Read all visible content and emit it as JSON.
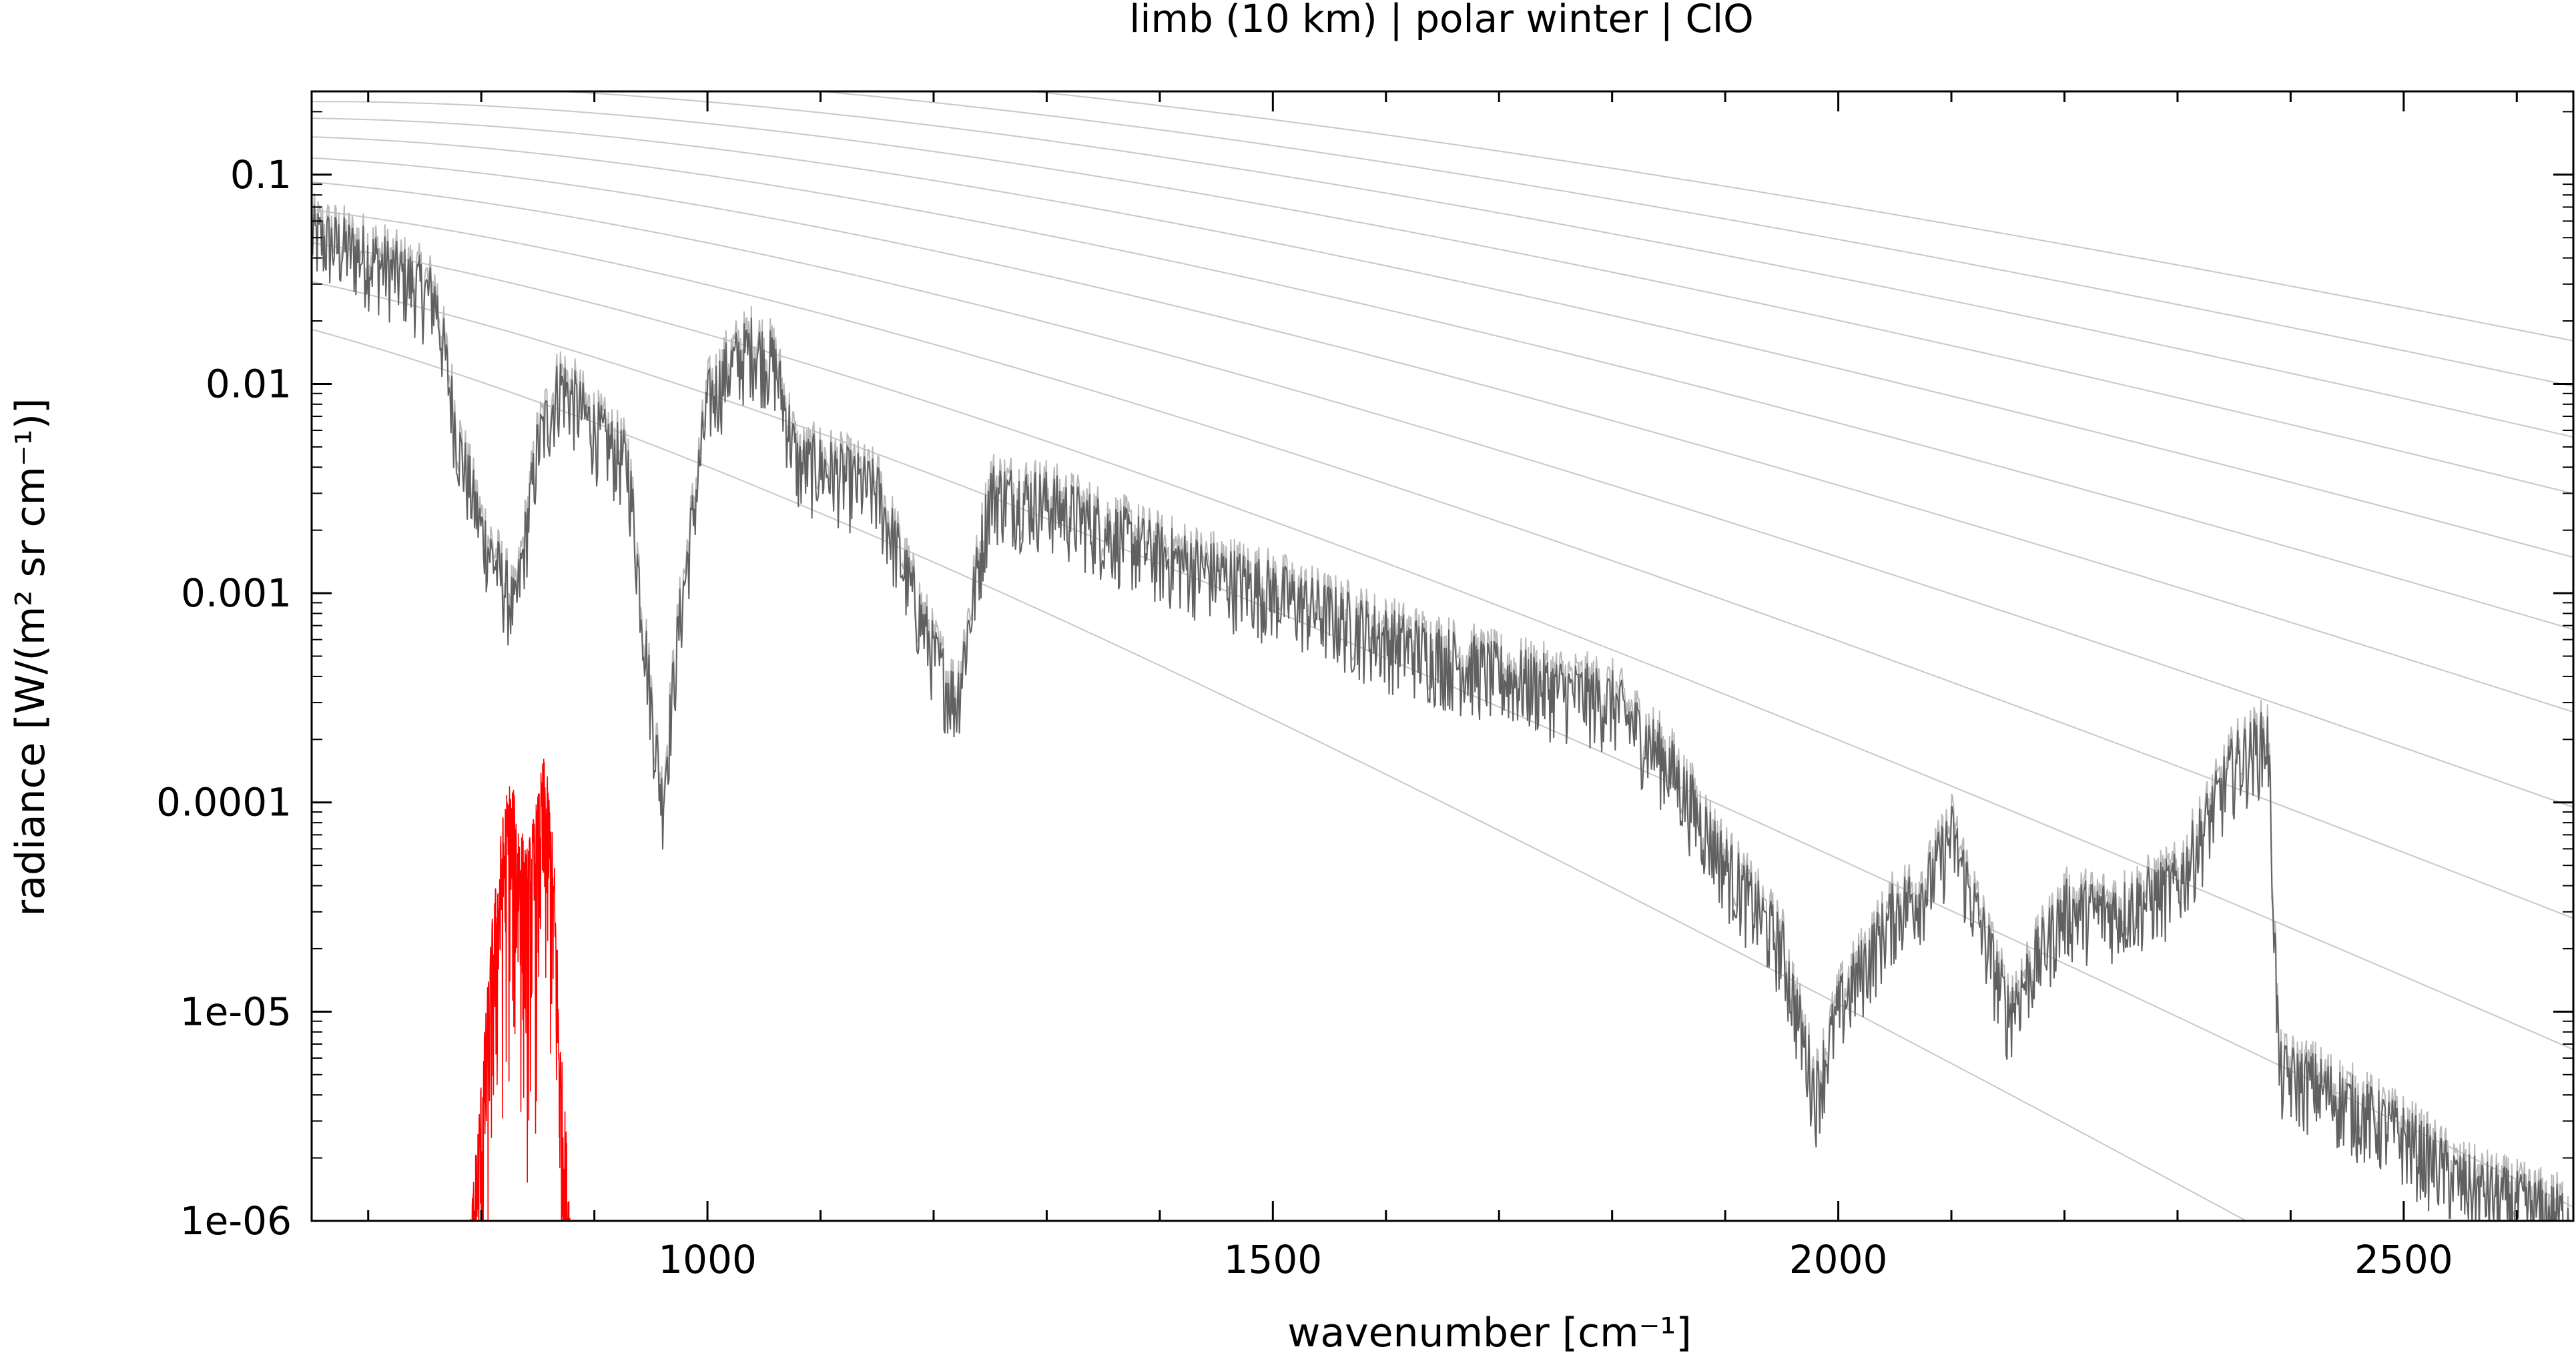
{
  "chart_data": {
    "type": "line",
    "title": "limb (10 km) | polar winter | ClO",
    "xlabel": "wavenumber [cm⁻¹]",
    "ylabel": "radiance [W/(m² sr cm⁻¹)]",
    "xlim": [
      650,
      2650
    ],
    "ylim": [
      1e-06,
      0.25
    ],
    "y_scale": "log",
    "x_ticks": [
      1000,
      1500,
      2000,
      2500
    ],
    "x_tick_labels": [
      "1000",
      "1500",
      "2000",
      "2500"
    ],
    "y_ticks": [
      1e-06,
      1e-05,
      0.0001,
      0.001,
      0.01,
      0.1
    ],
    "y_tick_labels": [
      "1e-06",
      "1e-05",
      "0.0001",
      "0.001",
      "0.01",
      "0.1"
    ],
    "grid": false,
    "legend": "none",
    "reference_curves": {
      "description": "Planck radiance curves",
      "temperatures_K": [
        180,
        200,
        220,
        240,
        260,
        280,
        300,
        320,
        340,
        360,
        380,
        400
      ],
      "color": "#c8c8c8"
    },
    "series": [
      {
        "role": "total spectrum",
        "color": "#606060",
        "x": [
          650,
          700,
          740,
          760,
          780,
          800,
          830,
          850,
          870,
          900,
          930,
          950,
          960,
          975,
          1000,
          1020,
          1040,
          1060,
          1080,
          1100,
          1150,
          1200,
          1220,
          1250,
          1300,
          1350,
          1400,
          1500,
          1600,
          1700,
          1800,
          1850,
          1900,
          1950,
          1980,
          2000,
          2050,
          2080,
          2100,
          2150,
          2200,
          2250,
          2300,
          2350,
          2380,
          2390,
          2420,
          2500,
          2550,
          2600,
          2650
        ],
        "y": [
          0.05,
          0.04,
          0.03,
          0.025,
          0.005,
          0.002,
          0.0008,
          0.005,
          0.01,
          0.006,
          0.004,
          0.0003,
          0.0001,
          0.0007,
          0.008,
          0.012,
          0.015,
          0.012,
          0.004,
          0.004,
          0.003,
          0.0005,
          0.0003,
          0.003,
          0.0027,
          0.002,
          0.0015,
          0.001,
          0.0006,
          0.0004,
          0.0003,
          0.00015,
          5e-05,
          2e-05,
          4e-06,
          1e-05,
          3e-05,
          4e-05,
          7e-05,
          1e-05,
          3e-05,
          3e-05,
          4e-05,
          0.00015,
          0.0002,
          5e-06,
          4.5e-06,
          2.5e-06,
          1.5e-06,
          1.2e-06,
          1e-06
        ]
      },
      {
        "role": "ClO contribution",
        "color": "#ff0000",
        "x": [
          790,
          800,
          810,
          820,
          825,
          830,
          835,
          840,
          850,
          855,
          860,
          865,
          870,
          880
        ],
        "y": [
          1e-06,
          5e-06,
          3e-05,
          0.0001,
          0.00013,
          0.00011,
          8e-05,
          6e-05,
          0.00011,
          0.00017,
          0.00012,
          5e-05,
          8e-06,
          1e-06
        ]
      }
    ]
  }
}
